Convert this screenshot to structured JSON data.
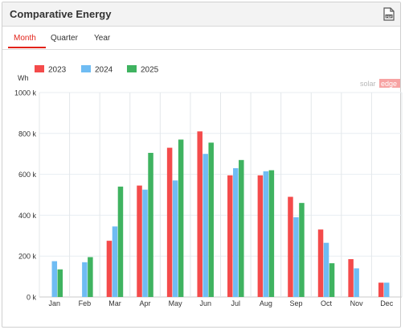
{
  "widget": {
    "title": "Comparative Energy",
    "export_icon": "pdf-export-icon"
  },
  "tabs": [
    {
      "label": "Month",
      "active": true
    },
    {
      "label": "Quarter",
      "active": false
    },
    {
      "label": "Year",
      "active": false
    }
  ],
  "watermark": {
    "left": "solar",
    "right": "edge"
  },
  "colors": {
    "2023": "#f44b4b",
    "2024": "#6fbcf3",
    "2025": "#3fb360",
    "accent": "#e2231a"
  },
  "chart_data": {
    "type": "bar",
    "ylabel": "Wh",
    "ylim": [
      0,
      1000000
    ],
    "yticks": [
      {
        "value": 0,
        "label": "0 k"
      },
      {
        "value": 200000,
        "label": "200 k"
      },
      {
        "value": 400000,
        "label": "400 k"
      },
      {
        "value": 600000,
        "label": "600 k"
      },
      {
        "value": 800000,
        "label": "800 k"
      },
      {
        "value": 1000000,
        "label": "1000 k"
      }
    ],
    "categories": [
      "Jan",
      "Feb",
      "Mar",
      "Apr",
      "May",
      "Jun",
      "Jul",
      "Aug",
      "Sep",
      "Oct",
      "Nov",
      "Dec"
    ],
    "legend_position": "top-left",
    "grid": true,
    "series": [
      {
        "name": "2023",
        "color": "#f44b4b",
        "values": [
          null,
          null,
          275000,
          545000,
          730000,
          810000,
          595000,
          595000,
          490000,
          330000,
          185000,
          70000
        ]
      },
      {
        "name": "2024",
        "color": "#6fbcf3",
        "values": [
          175000,
          170000,
          345000,
          525000,
          570000,
          700000,
          630000,
          615000,
          390000,
          265000,
          140000,
          70000
        ]
      },
      {
        "name": "2025",
        "color": "#3fb360",
        "values": [
          135000,
          195000,
          540000,
          705000,
          770000,
          755000,
          670000,
          620000,
          460000,
          165000,
          null,
          null
        ]
      }
    ]
  }
}
